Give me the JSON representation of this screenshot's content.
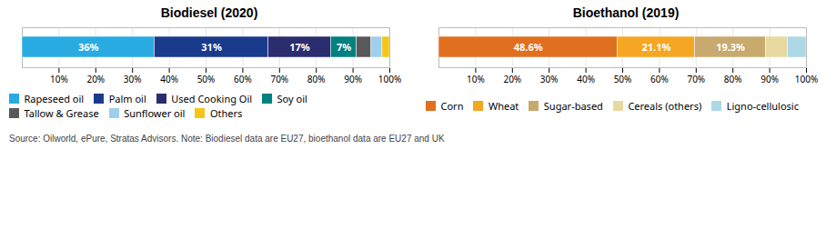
{
  "chart_data": [
    {
      "type": "bar",
      "orientation": "horizontal",
      "stacked": true,
      "title": "Biodiesel (2020)",
      "categories": [
        null
      ],
      "series": [
        {
          "name": "Rapeseed oil",
          "color": "#29ABE2",
          "values": [
            36
          ],
          "value_labels": [
            "36%"
          ]
        },
        {
          "name": "Palm oil",
          "color": "#1A3A8C",
          "values": [
            31
          ],
          "value_labels": [
            "31%"
          ]
        },
        {
          "name": "Used Cooking Oil",
          "color": "#2B2D6E",
          "values": [
            17
          ],
          "value_labels": [
            "17%"
          ]
        },
        {
          "name": "Soy oil",
          "color": "#008080",
          "values": [
            7
          ],
          "value_labels": [
            "7%"
          ]
        },
        {
          "name": "Tallow & Grease",
          "color": "#595959",
          "values": [
            4
          ],
          "value_labels": [
            null
          ]
        },
        {
          "name": "Sunflower oil",
          "color": "#9ECFED",
          "values": [
            3
          ],
          "value_labels": [
            null
          ]
        },
        {
          "name": "Others",
          "color": "#F5C518",
          "values": [
            2
          ],
          "value_labels": [
            null
          ]
        }
      ],
      "xlim": [
        0,
        100
      ],
      "xticks": [
        {
          "value": 10,
          "label": "10%"
        },
        {
          "value": 20,
          "label": "20%"
        },
        {
          "value": 30,
          "label": "30%"
        },
        {
          "value": 40,
          "label": "40%"
        },
        {
          "value": 50,
          "label": "50%"
        },
        {
          "value": 60,
          "label": "60%"
        },
        {
          "value": 70,
          "label": "70%"
        },
        {
          "value": 80,
          "label": "80%"
        },
        {
          "value": 90,
          "label": "90%"
        },
        {
          "value": 100,
          "label": "100%"
        }
      ],
      "grid": true,
      "legend": "lower left",
      "data_labels": true,
      "tick_labels": "x",
      "annotations": [
        "Source: Oilworld, ePure, Stratas Advisors.  Note: Biodiesel data are EU27, bioethanol data are EU27 and UK"
      ]
    },
    {
      "type": "bar",
      "orientation": "horizontal",
      "stacked": true,
      "title": "Bioethanol (2019)",
      "categories": [
        null
      ],
      "series": [
        {
          "name": "Corn",
          "color": "#E07020",
          "values": [
            48.6
          ],
          "value_labels": [
            "48.6%"
          ]
        },
        {
          "name": "Wheat",
          "color": "#F5A623",
          "values": [
            21.1
          ],
          "value_labels": [
            "21.1%"
          ]
        },
        {
          "name": "Sugar-based",
          "color": "#C8A96E",
          "values": [
            19.3
          ],
          "value_labels": [
            "19.3%"
          ]
        },
        {
          "name": "Cereals (others)",
          "color": "#E8D9A0",
          "values": [
            6
          ],
          "value_labels": [
            null
          ]
        },
        {
          "name": "Ligno-cellulosic",
          "color": "#ADD8E6",
          "values": [
            5
          ],
          "value_labels": [
            null
          ]
        }
      ],
      "xlim": [
        0,
        100
      ],
      "xticks": [
        {
          "value": 10,
          "label": "10%"
        },
        {
          "value": 20,
          "label": "20%"
        },
        {
          "value": 30,
          "label": "30%"
        },
        {
          "value": 40,
          "label": "40%"
        },
        {
          "value": 50,
          "label": "50%"
        },
        {
          "value": 60,
          "label": "60%"
        },
        {
          "value": 70,
          "label": "70%"
        },
        {
          "value": 80,
          "label": "80%"
        },
        {
          "value": 90,
          "label": "90%"
        },
        {
          "value": 100,
          "label": "100%"
        }
      ],
      "grid": true,
      "legend": "lower left",
      "data_labels": true,
      "tick_labels": "x"
    }
  ]
}
